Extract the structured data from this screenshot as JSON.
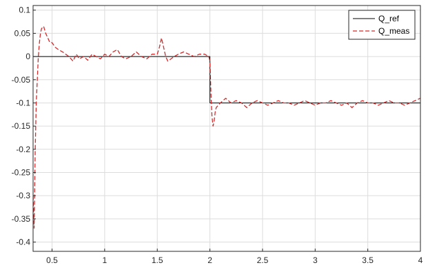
{
  "chart_data": {
    "type": "line",
    "title": "",
    "xlabel": "",
    "ylabel": "",
    "xlim": [
      0.32,
      4.0
    ],
    "ylim": [
      -0.42,
      0.11
    ],
    "x_ticks": [
      0.5,
      1,
      1.5,
      2,
      2.5,
      3,
      3.5,
      4
    ],
    "x_tick_labels": [
      "0.5",
      "1",
      "1.5",
      "2",
      "2.5",
      "3",
      "3.5",
      "4"
    ],
    "y_ticks": [
      0.1,
      0.05,
      0,
      -0.05,
      -0.1,
      -0.15,
      -0.2,
      -0.25,
      -0.3,
      -0.35,
      -0.4
    ],
    "y_tick_labels": [
      "0.1",
      "0.05",
      "0",
      "-0.05",
      "-0.1",
      "-0.15",
      "-0.2",
      "-0.25",
      "-0.3",
      "-0.35",
      "-0.4"
    ],
    "grid": true,
    "legend_position": "top-right",
    "series": [
      {
        "name": "Q_ref",
        "color": "#000000",
        "style": "solid",
        "x": [
          0.32,
          2.0,
          2.0,
          4.0
        ],
        "y": [
          0,
          0,
          -0.1,
          -0.1
        ]
      },
      {
        "name": "Q_meas",
        "color": "#d62728",
        "style": "dashed",
        "x": [
          0.32,
          0.33,
          0.34,
          0.35,
          0.36,
          0.37,
          0.38,
          0.39,
          0.4,
          0.42,
          0.44,
          0.46,
          0.48,
          0.5,
          0.53,
          0.56,
          0.6,
          0.63,
          0.66,
          0.7,
          0.73,
          0.76,
          0.8,
          0.84,
          0.88,
          0.92,
          0.96,
          1.0,
          1.04,
          1.08,
          1.12,
          1.16,
          1.2,
          1.25,
          1.3,
          1.35,
          1.4,
          1.45,
          1.5,
          1.52,
          1.54,
          1.56,
          1.58,
          1.6,
          1.63,
          1.66,
          1.7,
          1.75,
          1.8,
          1.85,
          1.9,
          1.95,
          1.99,
          2.0,
          2.01,
          2.02,
          2.03,
          2.04,
          2.05,
          2.06,
          2.08,
          2.1,
          2.15,
          2.2,
          2.25,
          2.3,
          2.35,
          2.4,
          2.45,
          2.5,
          2.55,
          2.6,
          2.65,
          2.7,
          2.75,
          2.8,
          2.85,
          2.9,
          2.95,
          3.0,
          3.05,
          3.1,
          3.15,
          3.2,
          3.25,
          3.3,
          3.35,
          3.4,
          3.45,
          3.5,
          3.55,
          3.6,
          3.65,
          3.7,
          3.75,
          3.8,
          3.85,
          3.9,
          3.95,
          4.0
        ],
        "y": [
          -0.3,
          -0.37,
          -0.2,
          -0.1,
          -0.05,
          0.0,
          0.03,
          0.05,
          0.06,
          0.065,
          0.05,
          0.04,
          0.03,
          0.03,
          0.02,
          0.015,
          0.01,
          0.005,
          0.0,
          -0.01,
          0.005,
          -0.005,
          0.0,
          -0.008,
          0.005,
          0.0,
          -0.005,
          0.005,
          0.0,
          0.01,
          0.015,
          0.0,
          -0.005,
          0.0,
          0.01,
          0.0,
          -0.005,
          0.005,
          0.005,
          0.02,
          0.04,
          0.02,
          0.0,
          -0.01,
          -0.005,
          0.0,
          0.005,
          0.01,
          0.005,
          0.0,
          0.005,
          0.005,
          0.0,
          -0.01,
          -0.08,
          -0.13,
          -0.15,
          -0.14,
          -0.12,
          -0.11,
          -0.105,
          -0.1,
          -0.09,
          -0.1,
          -0.095,
          -0.1,
          -0.11,
          -0.1,
          -0.095,
          -0.1,
          -0.105,
          -0.1,
          -0.095,
          -0.1,
          -0.1,
          -0.105,
          -0.1,
          -0.095,
          -0.1,
          -0.105,
          -0.1,
          -0.1,
          -0.095,
          -0.1,
          -0.105,
          -0.1,
          -0.11,
          -0.1,
          -0.095,
          -0.1,
          -0.1,
          -0.105,
          -0.1,
          -0.095,
          -0.1,
          -0.1,
          -0.105,
          -0.1,
          -0.095,
          -0.09
        ]
      }
    ]
  }
}
